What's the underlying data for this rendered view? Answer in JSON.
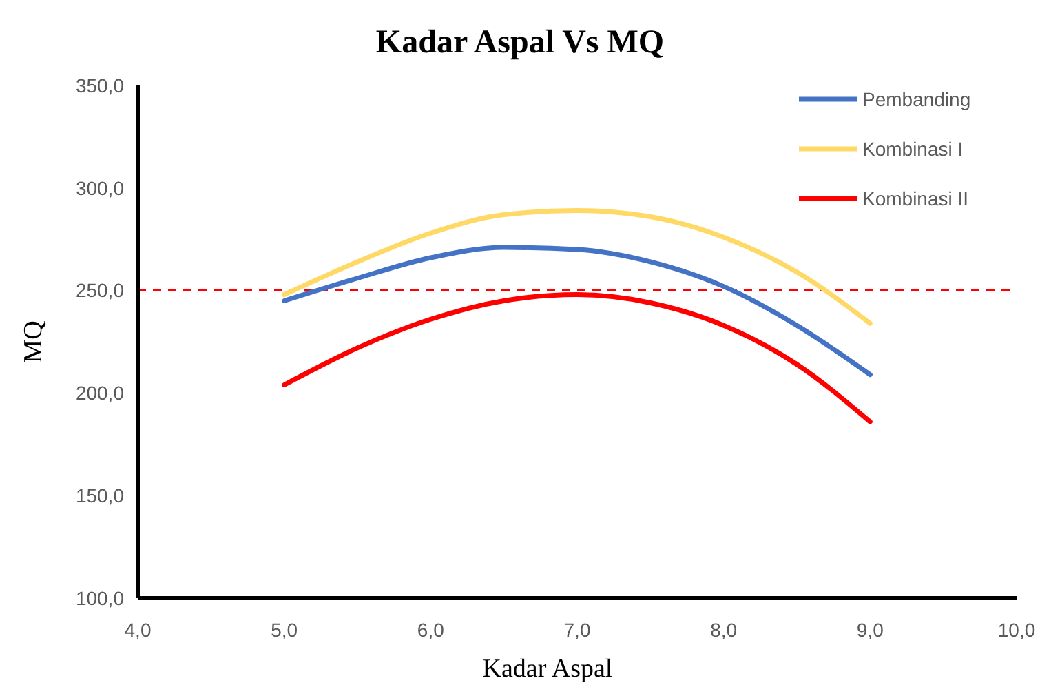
{
  "chart_data": {
    "type": "line",
    "title": "Kadar Aspal Vs MQ",
    "xlabel": "Kadar Aspal",
    "ylabel": "MQ",
    "x": [
      5,
      5.5,
      6,
      6.5,
      7,
      7.5,
      8,
      8.5,
      9
    ],
    "series": [
      {
        "name": "Pembanding",
        "color": "#4472c4",
        "values": [
          245,
          256,
          266,
          271,
          270,
          264,
          252,
          233,
          209
        ]
      },
      {
        "name": "Kombinasi I",
        "color": "#ffd966",
        "values": [
          248,
          264,
          278,
          287,
          289,
          286,
          276,
          259,
          234
        ]
      },
      {
        "name": "Kombinasi II",
        "color": "#ff0000",
        "values": [
          204,
          222,
          236,
          245,
          248,
          244,
          233,
          214,
          186
        ]
      }
    ],
    "xlim": [
      4,
      10
    ],
    "ylim": [
      100,
      350
    ],
    "xticks": [
      {
        "value": 4,
        "label": "4,0"
      },
      {
        "value": 5,
        "label": "5,0"
      },
      {
        "value": 6,
        "label": "6,0"
      },
      {
        "value": 7,
        "label": "7,0"
      },
      {
        "value": 8,
        "label": "8,0"
      },
      {
        "value": 9,
        "label": "9,0"
      },
      {
        "value": 10,
        "label": "10,0"
      }
    ],
    "yticks": [
      {
        "value": 100,
        "label": "100,0"
      },
      {
        "value": 150,
        "label": "150,0"
      },
      {
        "value": 200,
        "label": "200,0"
      },
      {
        "value": 250,
        "label": "250,0"
      },
      {
        "value": 300,
        "label": "300,0"
      },
      {
        "value": 350,
        "label": "350,0"
      }
    ],
    "ref_lines": [
      {
        "axis": "y",
        "value": 250,
        "color": "#ff0000",
        "line_style": "dashed"
      }
    ],
    "legend": "top right",
    "grid": false,
    "marker": "none",
    "line_style": "solid"
  }
}
